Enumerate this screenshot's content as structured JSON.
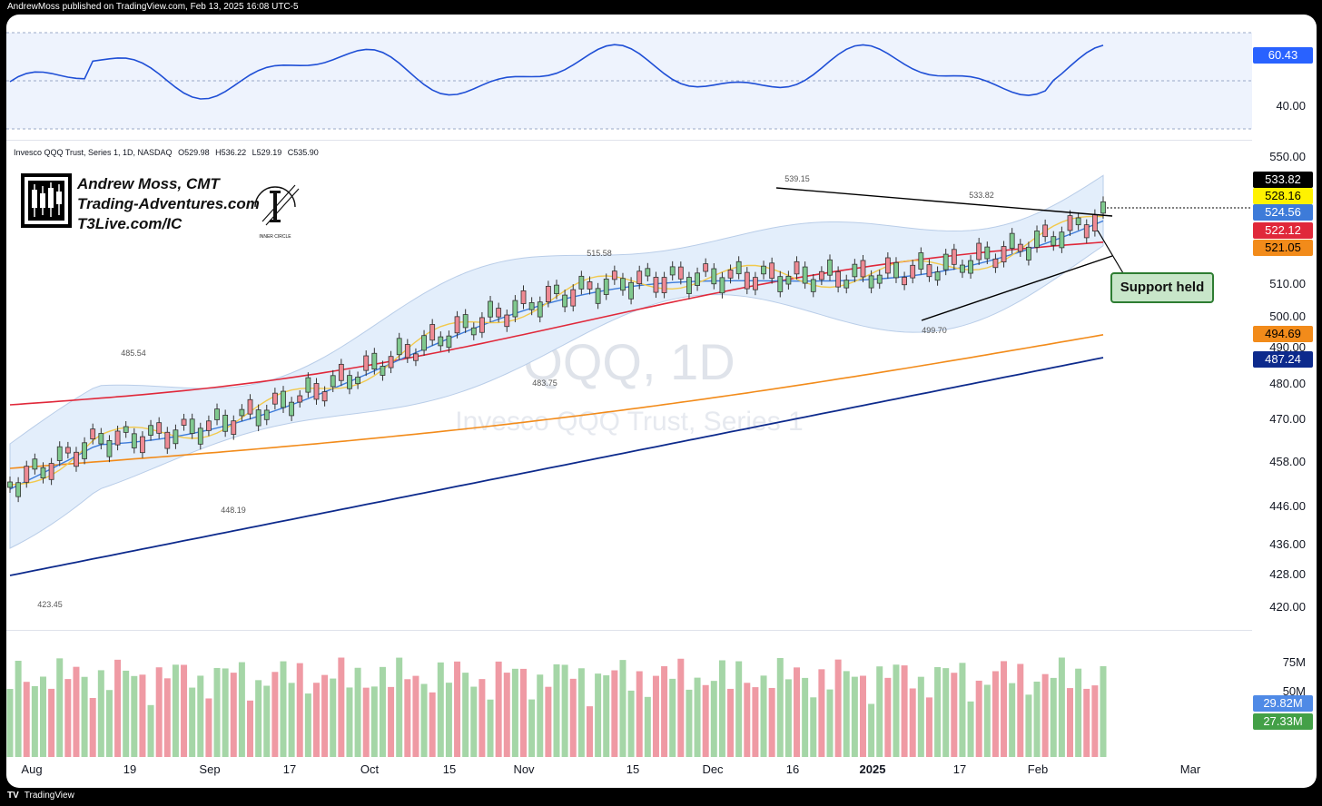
{
  "header": {
    "published": "AndrewMoss published on TradingView.com, Feb 13, 2025 16:08 UTC-5"
  },
  "footer": {
    "logo_text": "TV",
    "brand": "TradingView"
  },
  "legend": {
    "symbol": "Invesco QQQ Trust, Series 1, 1D, NASDAQ",
    "open": "O529.98",
    "high": "H536.22",
    "low": "L529.19",
    "close": "C535.90"
  },
  "watermark": {
    "symbol": "QQQ, 1D",
    "name": "Invesco QQQ Trust, Series 1"
  },
  "branding": {
    "line1": "Andrew Moss, CMT",
    "line2": "Trading-Adventures.com",
    "line3": "T3Live.com/IC",
    "logo_caption": "INNER CIRCLE"
  },
  "annotation": {
    "text": "Support held"
  },
  "colors": {
    "up": "#80c98f",
    "down": "#ef8a94",
    "sma10": "#f2c94c",
    "sma20": "#3d7bd9",
    "sma50": "#e0283a",
    "sma100": "#f28b1a",
    "sma200": "#0d2a8c",
    "rsi": "#1f4fd6",
    "band_fill": "#e3eefb"
  },
  "price_tags": [
    {
      "value": "533.82",
      "bg": "#000000",
      "fg": "#ffffff"
    },
    {
      "value": "528.16",
      "bg": "#fff200",
      "fg": "#000000"
    },
    {
      "value": "524.56",
      "bg": "#3d7bd9",
      "fg": "#ffffff"
    },
    {
      "value": "522.12",
      "bg": "#e0283a",
      "fg": "#ffffff"
    },
    {
      "value": "521.05",
      "bg": "#f28b1a",
      "fg": "#000000"
    },
    {
      "value": "494.69",
      "bg": "#f28b1a",
      "fg": "#000000"
    },
    {
      "value": "487.24",
      "bg": "#0d2a8c",
      "fg": "#ffffff"
    }
  ],
  "rsi": {
    "value_tag": "60.43",
    "tick": "40.00"
  },
  "volume": {
    "ticks": [
      "75M",
      "50M"
    ],
    "tags": [
      {
        "value": "29.82M",
        "bg": "#4f8ae6"
      },
      {
        "value": "27.33M",
        "bg": "#43a047"
      }
    ]
  },
  "chart_data": {
    "type": "candlestick",
    "price_axis_ticks": [
      "550.00",
      "520.00",
      "510.00",
      "500.00",
      "490.00",
      "480.00",
      "470.00",
      "458.00",
      "446.00",
      "436.00",
      "428.00",
      "420.00"
    ],
    "x_ticks": [
      "Aug",
      "19",
      "Sep",
      "17",
      "Oct",
      "15",
      "Nov",
      "15",
      "Dec",
      "16",
      "2025",
      "17",
      "Feb",
      "Mar"
    ],
    "price_labels": [
      "485.54",
      "448.19",
      "423.45",
      "515.58",
      "483.75",
      "539.15",
      "499.70",
      "533.82"
    ],
    "grid": false
  }
}
